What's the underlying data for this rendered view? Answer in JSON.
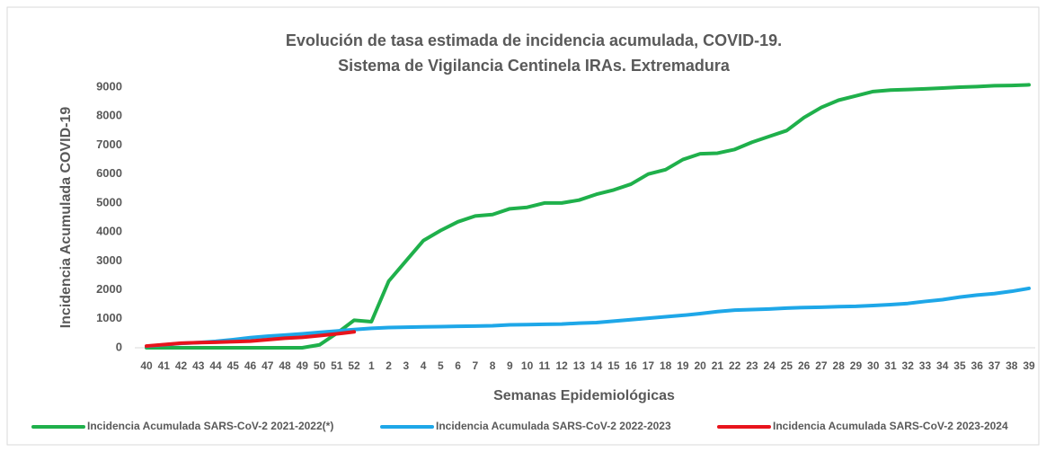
{
  "chart_data": {
    "type": "line",
    "title": "Evolución de tasa estimada de incidencia acumulada, COVID-19.",
    "subtitle": "Sistema de Vigilancia Centinela IRAs. Extremadura",
    "x_label": "Semanas Epidemiológicas",
    "y_label": "Incidencia Acumulada COVID-19",
    "categories": [
      "40",
      "41",
      "42",
      "43",
      "44",
      "45",
      "46",
      "47",
      "48",
      "49",
      "50",
      "51",
      "52",
      "1",
      "2",
      "3",
      "4",
      "5",
      "6",
      "7",
      "8",
      "9",
      "10",
      "11",
      "12",
      "13",
      "14",
      "15",
      "16",
      "17",
      "18",
      "19",
      "20",
      "21",
      "22",
      "23",
      "24",
      "25",
      "26",
      "27",
      "28",
      "29",
      "30",
      "31",
      "32",
      "33",
      "34",
      "35",
      "36",
      "37",
      "38",
      "39"
    ],
    "ylim": [
      0,
      9000
    ],
    "yticks": [
      0,
      1000,
      2000,
      3000,
      4000,
      5000,
      6000,
      7000,
      8000,
      9000
    ],
    "grid": false,
    "legend": "bottom",
    "series": [
      {
        "name": "Incidencia Acumulada SARS-CoV-2 2021-2022(*)",
        "color": "#1fb04b",
        "values": [
          0,
          0,
          0,
          0,
          0,
          0,
          0,
          0,
          0,
          0,
          100,
          500,
          950,
          900,
          2300,
          3000,
          3700,
          4050,
          4350,
          4550,
          4600,
          4800,
          4850,
          5000,
          5000,
          5100,
          5300,
          5450,
          5650,
          6000,
          6150,
          6500,
          6700,
          6720,
          6850,
          7100,
          7300,
          7500,
          7950,
          8300,
          8550,
          8700,
          8850,
          8900,
          8920,
          8940,
          8970,
          9000,
          9020,
          9050,
          9060,
          9080
        ]
      },
      {
        "name": "Incidencia Acumulada SARS-CoV-2 2022-2023",
        "color": "#1ea7e8",
        "values": [
          50,
          100,
          150,
          180,
          220,
          280,
          350,
          400,
          440,
          480,
          530,
          580,
          630,
          670,
          700,
          710,
          720,
          730,
          740,
          750,
          760,
          790,
          800,
          810,
          820,
          850,
          870,
          920,
          970,
          1020,
          1070,
          1120,
          1180,
          1250,
          1300,
          1320,
          1340,
          1370,
          1390,
          1400,
          1420,
          1430,
          1460,
          1490,
          1530,
          1600,
          1660,
          1750,
          1820,
          1870,
          1950,
          2050
        ]
      },
      {
        "name": "Incidencia Acumulada SARS-CoV-2 2023-2024",
        "color": "#e8141c",
        "values": [
          60,
          110,
          160,
          180,
          190,
          210,
          230,
          280,
          330,
          360,
          420,
          480,
          550,
          null,
          null,
          null,
          null,
          null,
          null,
          null,
          null,
          null,
          null,
          null,
          null,
          null,
          null,
          null,
          null,
          null,
          null,
          null,
          null,
          null,
          null,
          null,
          null,
          null,
          null,
          null,
          null,
          null,
          null,
          null,
          null,
          null,
          null,
          null,
          null,
          null,
          null,
          null
        ]
      }
    ]
  }
}
